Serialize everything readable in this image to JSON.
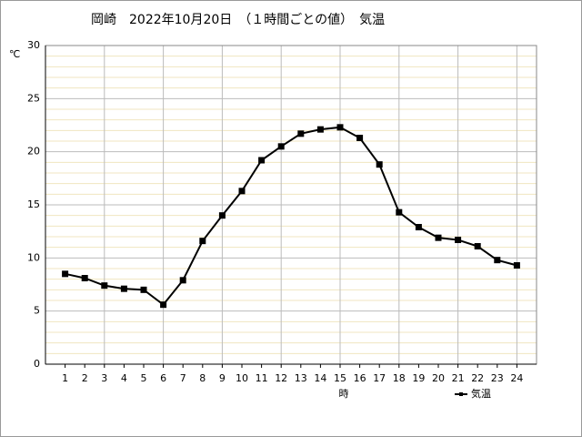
{
  "chart_data": {
    "type": "line",
    "title": "岡崎　2022年10月20日　（１時間ごとの値）　気温",
    "y_label": "℃",
    "x_label": "時",
    "x": [
      1,
      2,
      3,
      4,
      5,
      6,
      7,
      8,
      9,
      10,
      11,
      12,
      13,
      14,
      15,
      16,
      17,
      18,
      19,
      20,
      21,
      22,
      23,
      24
    ],
    "series": [
      {
        "name": "気温",
        "color": "#000000",
        "values": [
          8.5,
          8.1,
          7.4,
          7.1,
          7.0,
          5.6,
          7.9,
          11.6,
          14.0,
          16.3,
          19.2,
          20.5,
          21.7,
          22.1,
          22.3,
          21.3,
          18.8,
          14.3,
          12.9,
          11.9,
          11.7,
          11.1,
          9.8,
          9.3
        ]
      }
    ],
    "xlim": [
      0,
      25
    ],
    "xticks": [
      1,
      2,
      3,
      4,
      5,
      6,
      7,
      8,
      9,
      10,
      11,
      12,
      13,
      14,
      15,
      16,
      17,
      18,
      19,
      20,
      21,
      22,
      23,
      24
    ],
    "ylim": [
      0,
      30
    ],
    "yticks": [
      0,
      5,
      10,
      15,
      20,
      25,
      30
    ],
    "grid": true
  }
}
